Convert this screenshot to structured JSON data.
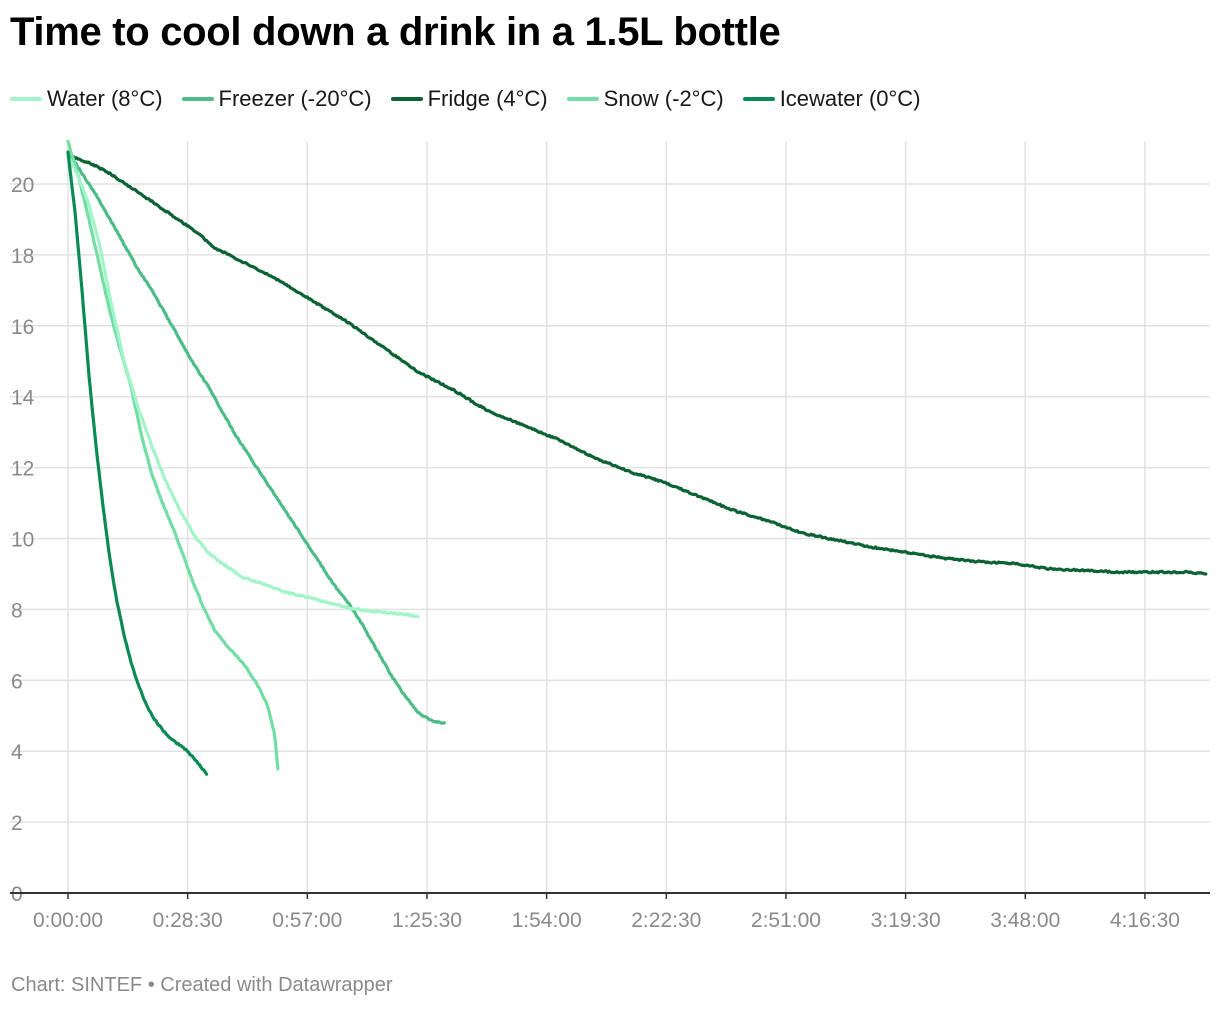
{
  "chart_data": {
    "type": "line",
    "title": "Time to cool down a drink in a 1.5L bottle",
    "xlabel": "",
    "ylabel": "",
    "x_unit": "seconds elapsed",
    "x_ticks": [
      {
        "value": 0,
        "label": "0:00:00"
      },
      {
        "value": 1710,
        "label": "0:28:30"
      },
      {
        "value": 3420,
        "label": "0:57:00"
      },
      {
        "value": 5130,
        "label": "1:25:30"
      },
      {
        "value": 6840,
        "label": "1:54:00"
      },
      {
        "value": 8550,
        "label": "2:22:30"
      },
      {
        "value": 10260,
        "label": "2:51:00"
      },
      {
        "value": 11970,
        "label": "3:19:30"
      },
      {
        "value": 13680,
        "label": "3:48:00"
      },
      {
        "value": 15390,
        "label": "4:16:30"
      }
    ],
    "y_ticks": [
      0,
      2,
      4,
      6,
      8,
      10,
      12,
      14,
      16,
      18,
      20
    ],
    "xlim": [
      0,
      16320
    ],
    "ylim": [
      0,
      21.2
    ],
    "grid": true,
    "legend_position": "top-left",
    "series": [
      {
        "name": "Water (8°C)",
        "color": "#a2f5c8",
        "points": [
          [
            0,
            20.8
          ],
          [
            150,
            20.2
          ],
          [
            300,
            19.4
          ],
          [
            450,
            18.3
          ],
          [
            600,
            16.8
          ],
          [
            800,
            15.0
          ],
          [
            1000,
            13.7
          ],
          [
            1200,
            12.6
          ],
          [
            1400,
            11.6
          ],
          [
            1600,
            10.8
          ],
          [
            1800,
            10.1
          ],
          [
            2000,
            9.6
          ],
          [
            2200,
            9.3
          ],
          [
            2500,
            8.9
          ],
          [
            2800,
            8.7
          ],
          [
            3100,
            8.5
          ],
          [
            3400,
            8.35
          ],
          [
            3700,
            8.2
          ],
          [
            4000,
            8.05
          ],
          [
            4300,
            7.95
          ],
          [
            4600,
            7.9
          ],
          [
            4850,
            7.85
          ],
          [
            5000,
            7.8
          ]
        ]
      },
      {
        "name": "Freezer (-20°C)",
        "color": "#4cbd88",
        "points": [
          [
            0,
            20.9
          ],
          [
            200,
            20.3
          ],
          [
            400,
            19.7
          ],
          [
            600,
            19.0
          ],
          [
            800,
            18.3
          ],
          [
            1000,
            17.6
          ],
          [
            1200,
            17.0
          ],
          [
            1400,
            16.3
          ],
          [
            1600,
            15.6
          ],
          [
            1800,
            14.9
          ],
          [
            2000,
            14.3
          ],
          [
            2200,
            13.6
          ],
          [
            2400,
            12.9
          ],
          [
            2600,
            12.3
          ],
          [
            2800,
            11.7
          ],
          [
            3000,
            11.1
          ],
          [
            3200,
            10.5
          ],
          [
            3400,
            9.9
          ],
          [
            3600,
            9.3
          ],
          [
            3800,
            8.7
          ],
          [
            4000,
            8.2
          ],
          [
            4200,
            7.6
          ],
          [
            4400,
            6.9
          ],
          [
            4600,
            6.2
          ],
          [
            4800,
            5.6
          ],
          [
            5000,
            5.1
          ],
          [
            5200,
            4.85
          ],
          [
            5380,
            4.8
          ]
        ]
      },
      {
        "name": "Fridge (4°C)",
        "color": "#0b6333",
        "points": [
          [
            0,
            20.8
          ],
          [
            300,
            20.6
          ],
          [
            600,
            20.3
          ],
          [
            900,
            19.9
          ],
          [
            1200,
            19.5
          ],
          [
            1500,
            19.1
          ],
          [
            1800,
            18.7
          ],
          [
            2100,
            18.2
          ],
          [
            2500,
            17.8
          ],
          [
            3000,
            17.3
          ],
          [
            3500,
            16.7
          ],
          [
            4000,
            16.1
          ],
          [
            4500,
            15.4
          ],
          [
            5000,
            14.7
          ],
          [
            5500,
            14.2
          ],
          [
            6000,
            13.6
          ],
          [
            6500,
            13.2
          ],
          [
            7000,
            12.8
          ],
          [
            7500,
            12.3
          ],
          [
            8000,
            11.9
          ],
          [
            8500,
            11.6
          ],
          [
            9000,
            11.2
          ],
          [
            9500,
            10.8
          ],
          [
            10000,
            10.5
          ],
          [
            10500,
            10.15
          ],
          [
            11000,
            9.95
          ],
          [
            11500,
            9.75
          ],
          [
            12000,
            9.6
          ],
          [
            12500,
            9.45
          ],
          [
            13000,
            9.35
          ],
          [
            13500,
            9.3
          ],
          [
            14000,
            9.15
          ],
          [
            14500,
            9.1
          ],
          [
            15000,
            9.05
          ],
          [
            15500,
            9.05
          ],
          [
            16000,
            9.05
          ],
          [
            16260,
            9.0
          ]
        ]
      },
      {
        "name": "Snow (-2°C)",
        "color": "#71dea3",
        "points": [
          [
            0,
            21.2
          ],
          [
            150,
            20.2
          ],
          [
            300,
            19.0
          ],
          [
            450,
            17.7
          ],
          [
            600,
            16.4
          ],
          [
            750,
            15.3
          ],
          [
            900,
            14.3
          ],
          [
            1050,
            12.9
          ],
          [
            1200,
            11.8
          ],
          [
            1350,
            11.0
          ],
          [
            1500,
            10.3
          ],
          [
            1650,
            9.5
          ],
          [
            1800,
            8.7
          ],
          [
            1950,
            8.0
          ],
          [
            2100,
            7.4
          ],
          [
            2300,
            6.9
          ],
          [
            2500,
            6.5
          ],
          [
            2700,
            5.9
          ],
          [
            2850,
            5.3
          ],
          [
            2950,
            4.5
          ],
          [
            3000,
            3.5
          ]
        ]
      },
      {
        "name": "Icewater (0°C)",
        "color": "#0b8a55",
        "points": [
          [
            0,
            20.9
          ],
          [
            100,
            19.2
          ],
          [
            200,
            17.0
          ],
          [
            300,
            14.6
          ],
          [
            400,
            12.6
          ],
          [
            500,
            10.9
          ],
          [
            600,
            9.4
          ],
          [
            700,
            8.2
          ],
          [
            800,
            7.3
          ],
          [
            900,
            6.5
          ],
          [
            1000,
            5.9
          ],
          [
            1100,
            5.4
          ],
          [
            1200,
            5.0
          ],
          [
            1350,
            4.6
          ],
          [
            1500,
            4.3
          ],
          [
            1650,
            4.1
          ],
          [
            1800,
            3.8
          ],
          [
            1900,
            3.55
          ],
          [
            1980,
            3.35
          ]
        ]
      }
    ]
  },
  "footer": {
    "credit": "Chart: SINTEF • Created with Datawrapper"
  },
  "style": {
    "grid_color": "#e2e2e2",
    "axis_color": "#333333",
    "tick_label_color": "#8a8a8a"
  }
}
